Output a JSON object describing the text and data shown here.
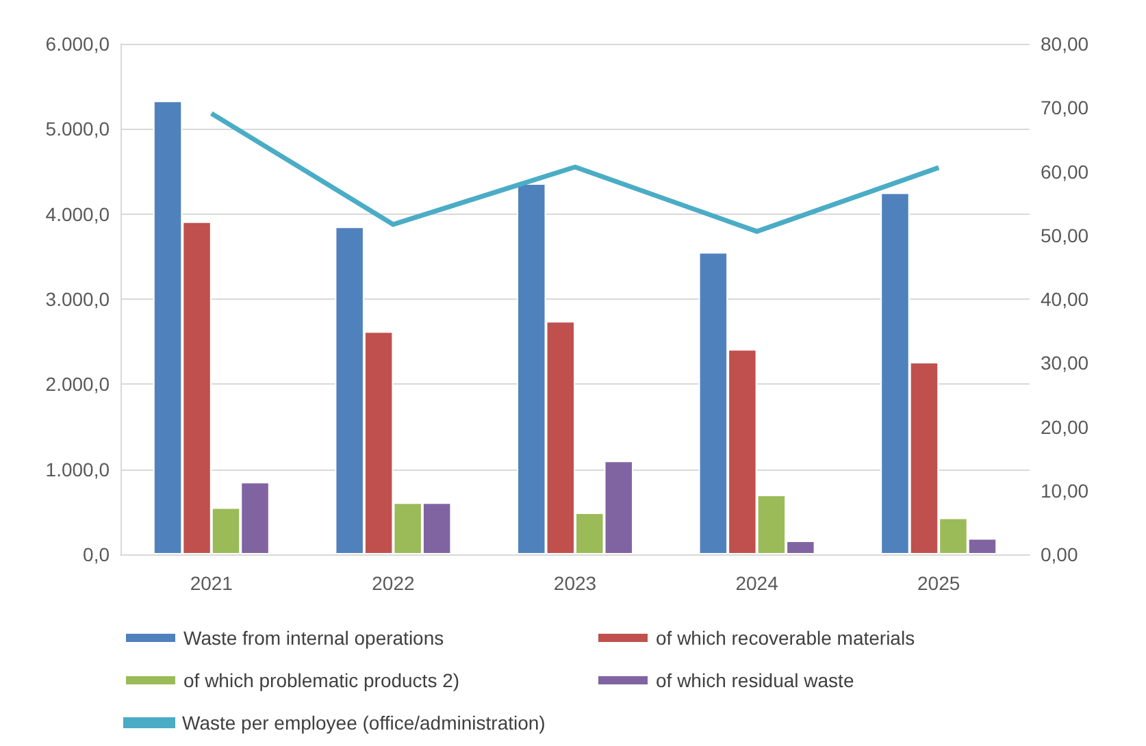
{
  "chart_data": {
    "type": "bar",
    "categories": [
      "2021",
      "2022",
      "2023",
      "2024",
      "2025"
    ],
    "series": [
      {
        "name": "Waste from internal operations",
        "color": "#4f81bd",
        "values": [
          5330,
          3850,
          4360,
          3550,
          4250
        ]
      },
      {
        "name": "of which recoverable materials",
        "color": "#c0504d",
        "values": [
          3910,
          2620,
          2740,
          2410,
          2260
        ]
      },
      {
        "name": "of which problematic products 2)",
        "color": "#9bbb59",
        "values": [
          550,
          610,
          490,
          700,
          430
        ]
      },
      {
        "name": "of which residual waste",
        "color": "#8064a2",
        "values": [
          850,
          610,
          1100,
          160,
          190
        ]
      },
      {
        "name": "Waste per employee (office/administration)",
        "type": "line",
        "axis": "y2",
        "color": "#4bacc6",
        "values": [
          69.1,
          51.7,
          60.7,
          50.6,
          60.6
        ]
      }
    ],
    "ylim": [
      0,
      6000
    ],
    "yticks": [
      {
        "value": 0,
        "label": "0,0"
      },
      {
        "value": 1000,
        "label": "1.000,0"
      },
      {
        "value": 2000,
        "label": "2.000,0"
      },
      {
        "value": 3000,
        "label": "3.000,0"
      },
      {
        "value": 4000,
        "label": "4.000,0"
      },
      {
        "value": 5000,
        "label": "5.000,0"
      },
      {
        "value": 6000,
        "label": "6.000,0"
      }
    ],
    "y2lim": [
      0,
      80
    ],
    "y2ticks": [
      {
        "value": 0,
        "label": "0,00"
      },
      {
        "value": 10,
        "label": "10,00"
      },
      {
        "value": 20,
        "label": "20,00"
      },
      {
        "value": 30,
        "label": "30,00"
      },
      {
        "value": 40,
        "label": "40,00"
      },
      {
        "value": 50,
        "label": "50,00"
      },
      {
        "value": 60,
        "label": "60,00"
      },
      {
        "value": 70,
        "label": "70,00"
      },
      {
        "value": 80,
        "label": "80,00"
      }
    ],
    "grid": "y",
    "legend": "bottom",
    "marker": "none"
  }
}
